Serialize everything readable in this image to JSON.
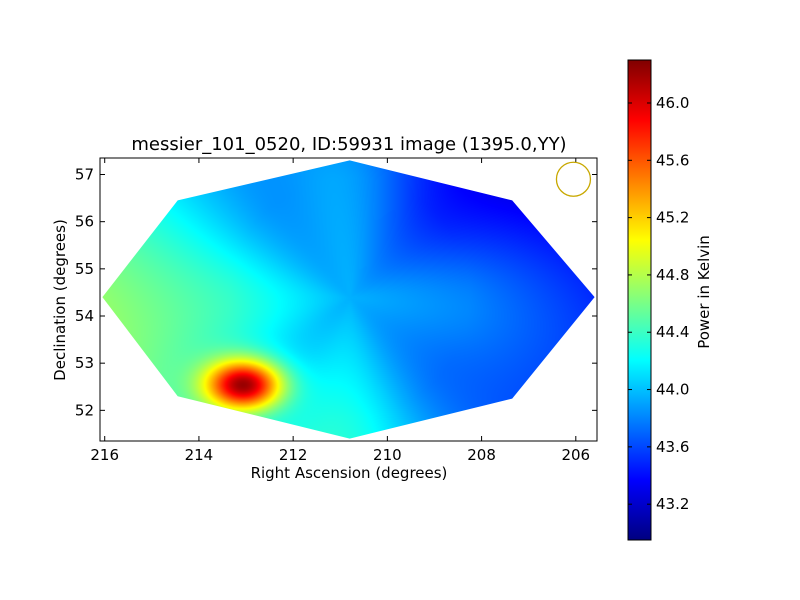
{
  "chart_data": {
    "type": "heatmap",
    "title": "messier_101_0520, ID:59931 image (1395.0,YY)",
    "xlabel": "Right Ascension (degrees)",
    "ylabel": "Declination (degrees)",
    "xlim": [
      216.1,
      205.55
    ],
    "ylim": [
      51.35,
      57.35
    ],
    "x_ticks": [
      216,
      214,
      212,
      210,
      208,
      206
    ],
    "x_tick_labels": [
      "216",
      "214",
      "212",
      "210",
      "208",
      "206"
    ],
    "y_ticks": [
      52,
      53,
      54,
      55,
      56,
      57
    ],
    "y_tick_labels": [
      "52",
      "53",
      "54",
      "55",
      "56",
      "57"
    ],
    "colorbar": {
      "label": "Power in Kelvin",
      "range": [
        42.95,
        46.3
      ],
      "ticks": [
        43.2,
        43.6,
        44.0,
        44.4,
        44.8,
        45.2,
        45.6,
        46.0
      ],
      "tick_labels": [
        "43.2",
        "43.6",
        "44.0",
        "44.4",
        "44.8",
        "45.2",
        "45.6",
        "46.0"
      ]
    },
    "colormap": "jet",
    "grid": false,
    "map_outline": [
      [
        216.05,
        54.4
      ],
      [
        214.45,
        56.45
      ],
      [
        210.8,
        57.3
      ],
      [
        207.35,
        56.45
      ],
      [
        205.6,
        54.4
      ],
      [
        207.35,
        52.25
      ],
      [
        210.8,
        51.4
      ],
      [
        214.45,
        52.3
      ]
    ],
    "field_center": [
      210.8,
      54.4
    ],
    "hotspot": {
      "ra": 213.05,
      "dec": 52.55,
      "peak": 46.2
    },
    "beam_marker": {
      "ra": 206.05,
      "dec": 56.9,
      "color": "#c8a800"
    }
  }
}
